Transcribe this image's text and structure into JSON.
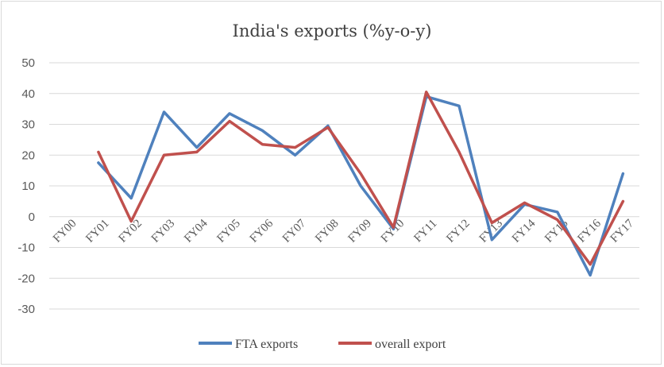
{
  "chart_data": {
    "type": "line",
    "title": "India's exports (%y-o-y)",
    "categories": [
      "FY00",
      "FY01",
      "FY02",
      "FY03",
      "FY04",
      "FY05",
      "FY06",
      "FY07",
      "FY08",
      "FY09",
      "FY10",
      "FY11",
      "FY12",
      "FY13",
      "FY14",
      "FY15",
      "FY16",
      "FY17"
    ],
    "ylim": [
      -30,
      50
    ],
    "yticks": [
      50,
      40,
      30,
      20,
      10,
      0,
      -10,
      -20,
      -30
    ],
    "grid": true,
    "legend_position": "bottom",
    "series": [
      {
        "name": "FTA exports",
        "color": "#4f81bd",
        "values": [
          null,
          17.5,
          6,
          34,
          22.5,
          33.5,
          28,
          20,
          29.5,
          10,
          -4,
          39,
          36,
          -7.5,
          4,
          1.5,
          -19,
          14
        ]
      },
      {
        "name": "overall export",
        "color": "#c0504d",
        "values": [
          null,
          21,
          -1.5,
          20,
          21,
          31,
          23.5,
          22.5,
          29,
          14,
          -3.5,
          40.5,
          21,
          -2,
          4.5,
          -1,
          -15.5,
          5
        ]
      }
    ]
  }
}
